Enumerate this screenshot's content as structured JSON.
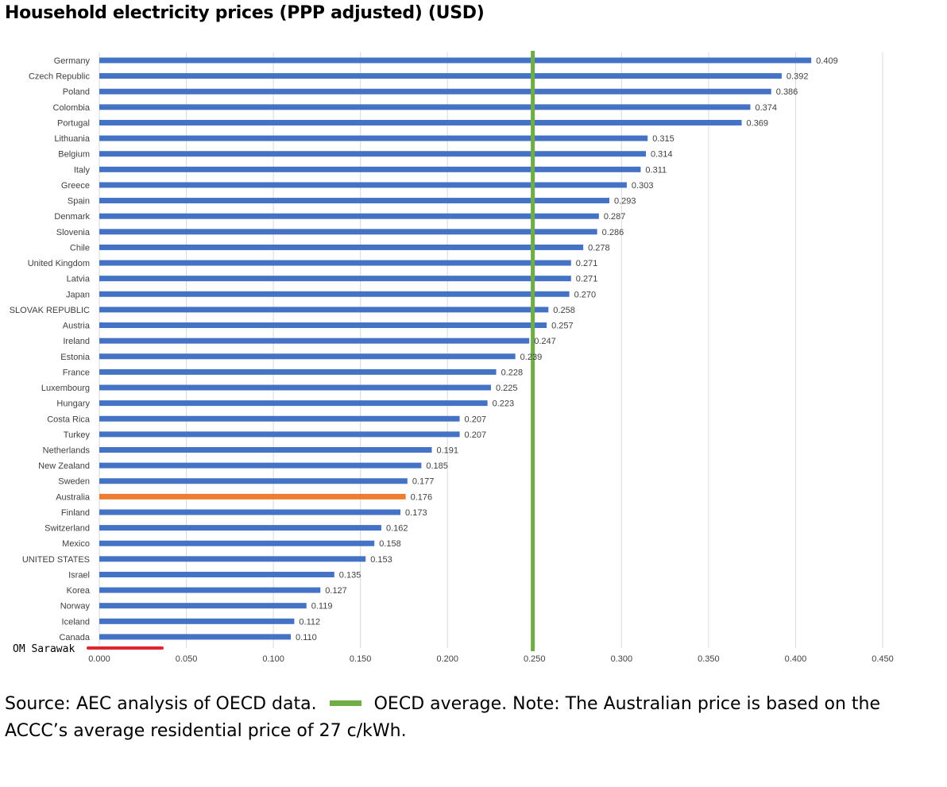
{
  "title": "Household electricity prices (PPP adjusted) (USD)",
  "chart_data": {
    "type": "bar",
    "orientation": "horizontal",
    "categories": [
      "Germany",
      "Czech Republic",
      "Poland",
      "Colombia",
      "Portugal",
      "Lithuania",
      "Belgium",
      "Italy",
      "Greece",
      "Spain",
      "Denmark",
      "Slovenia",
      "Chile",
      "United Kingdom",
      "Latvia",
      "Japan",
      "SLOVAK REPUBLIC",
      "Austria",
      "Ireland",
      "Estonia",
      "France",
      "Luxembourg",
      "Hungary",
      "Costa Rica",
      "Turkey",
      "Netherlands",
      "New Zealand",
      "Sweden",
      "Australia",
      "Finland",
      "Switzerland",
      "Mexico",
      "UNITED STATES",
      "Israel",
      "Korea",
      "Norway",
      "Iceland",
      "Canada"
    ],
    "values": [
      0.409,
      0.392,
      0.386,
      0.374,
      0.369,
      0.315,
      0.314,
      0.311,
      0.303,
      0.293,
      0.287,
      0.286,
      0.278,
      0.271,
      0.271,
      0.27,
      0.258,
      0.257,
      0.247,
      0.239,
      0.228,
      0.225,
      0.223,
      0.207,
      0.207,
      0.191,
      0.185,
      0.177,
      0.176,
      0.173,
      0.162,
      0.158,
      0.153,
      0.135,
      0.127,
      0.119,
      0.112,
      0.11
    ],
    "value_labels": [
      "0.409",
      "0.392",
      "0.386",
      "0.374",
      "0.369",
      "0.315",
      "0.314",
      "0.311",
      "0.303",
      "0.293",
      "0.287",
      "0.286",
      "0.278",
      "0.271",
      "0.271",
      "0.270",
      "0.258",
      "0.257",
      "0.247",
      "0.239",
      "0.228",
      "0.225",
      "0.223",
      "0.207",
      "0.207",
      "0.191",
      "0.185",
      "0.177",
      "0.176",
      "0.173",
      "0.162",
      "0.158",
      "0.153",
      "0.135",
      "0.127",
      "0.119",
      "0.112",
      "0.110"
    ],
    "highlight_category": "Australia",
    "reference_line": {
      "value": 0.249,
      "color": "#70ad47"
    },
    "xlim": [
      0,
      0.45
    ],
    "xticks": [
      0,
      0.05,
      0.1,
      0.15,
      0.2,
      0.25,
      0.3,
      0.35,
      0.4,
      0.45
    ],
    "xtick_labels": [
      "0.000",
      "0.050",
      "0.100",
      "0.150",
      "0.200",
      "0.250",
      "0.300",
      "0.350",
      "0.400",
      "0.450"
    ],
    "grid": true,
    "colors": {
      "bar": "#4472c4",
      "highlight": "#ed7d31",
      "reference": "#70ad47",
      "grid": "#d9d9d9"
    }
  },
  "annotation": {
    "text": "OM Sarawak",
    "mark_color": "#e0262e"
  },
  "footer": {
    "source_text": "Source: AEC analysis of OECD data.",
    "legend_label": "OECD average. Note: The Australian price is based on the ACCC’s average residential price of 27 c/kWh.",
    "legend_color": "#70ad47"
  }
}
